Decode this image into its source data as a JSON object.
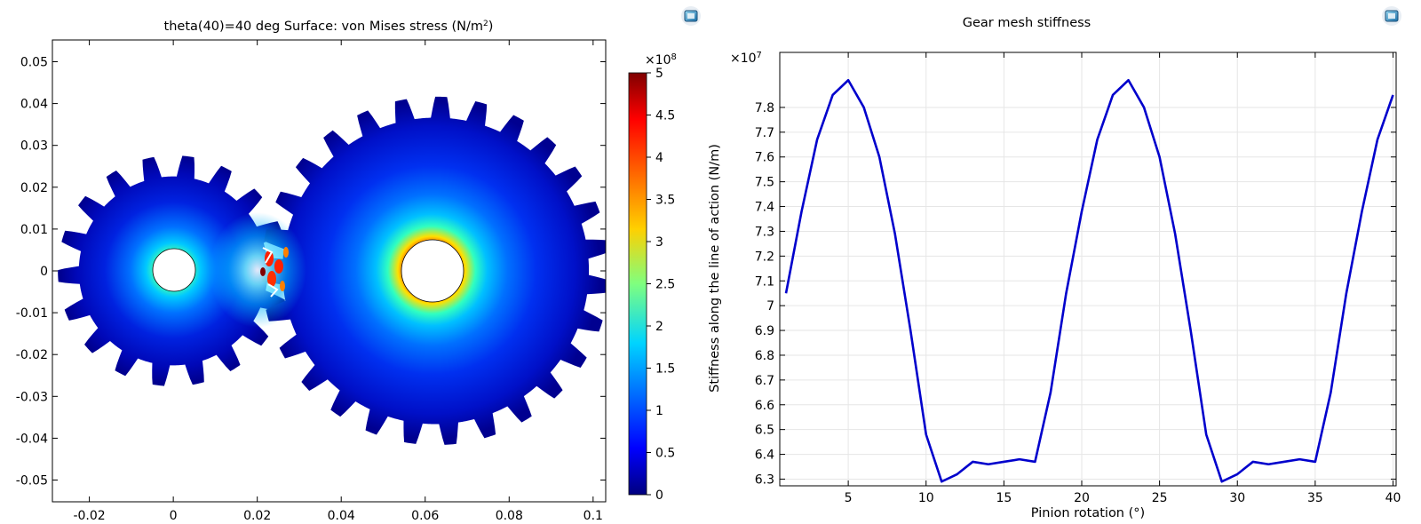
{
  "chart_data": [
    {
      "type": "heatmap",
      "title_prefix": "theta(40)=40 deg",
      "title_main": "Surface: von Mises stress (N/m",
      "title_sup": "2",
      "title_suffix": ")",
      "x_ticks": [
        -0.02,
        0,
        0.02,
        0.04,
        0.06,
        0.08,
        0.1
      ],
      "x_tick_labels": [
        "-0.02",
        "0",
        "0.02",
        "0.04",
        "0.06",
        "0.08",
        "0.1"
      ],
      "y_ticks": [
        0.05,
        0.04,
        0.03,
        0.02,
        0.01,
        0,
        -0.01,
        -0.02,
        -0.03,
        -0.04,
        -0.05
      ],
      "y_tick_labels": [
        "0.05",
        "0.04",
        "0.03",
        "0.02",
        "0.01",
        "0",
        "-0.01",
        "-0.02",
        "-0.03",
        "-0.04",
        "-0.05"
      ],
      "xlim": [
        -0.0288,
        0.103
      ],
      "ylim": [
        -0.0552,
        0.0552
      ],
      "gears": [
        {
          "name": "pinion",
          "center": [
            0,
            0
          ],
          "root_radius": 0.0225,
          "tip_radius": 0.0275,
          "teeth": 18,
          "bore_radius": 0.0052
        },
        {
          "name": "gear",
          "center": [
            0.0625,
            0
          ],
          "root_radius": 0.0365,
          "tip_radius": 0.0415,
          "teeth": 27,
          "bore_radius": 0.0075
        }
      ],
      "colorbar": {
        "exponent_base": "×10",
        "exponent_power": "8",
        "range": [
          0,
          5
        ],
        "ticks": [
          5,
          4.5,
          4,
          3.5,
          3,
          2.5,
          2,
          1.5,
          1,
          0.5,
          0
        ],
        "tick_labels": [
          "5",
          "4.5",
          "4",
          "3.5",
          "3",
          "2.5",
          "2",
          "1.5",
          "1",
          "0.5",
          "0"
        ],
        "colormap": [
          "#00007f",
          "#0000ff",
          "#00b4ff",
          "#7fff7f",
          "#ffd000",
          "#ff2a00",
          "#7f0000"
        ]
      }
    },
    {
      "type": "line",
      "title": "Gear mesh stiffness",
      "xlabel": "Pinion rotation (°)",
      "ylabel": "Stiffness along the line of action (N/m)",
      "y_multiplier_base": "×10",
      "y_multiplier_power": "7",
      "xlim": [
        0.6,
        40.2
      ],
      "ylim": [
        6.273,
        8.022
      ],
      "x_ticks": [
        5,
        10,
        15,
        20,
        25,
        30,
        35,
        40
      ],
      "y_ticks": [
        6.3,
        6.4,
        6.5,
        6.6,
        6.7,
        6.8,
        6.9,
        7,
        7.1,
        7.2,
        7.3,
        7.4,
        7.5,
        7.6,
        7.7,
        7.8
      ],
      "y_tick_labels": [
        "6.3",
        "6.4",
        "6.5",
        "6.6",
        "6.7",
        "6.8",
        "6.9",
        "7",
        "7.1",
        "7.2",
        "7.3",
        "7.4",
        "7.5",
        "7.6",
        "7.7",
        "7.8"
      ],
      "series": [
        {
          "name": "stiffness",
          "color": "#0000cc",
          "x": [
            1,
            2,
            3,
            4,
            5,
            6,
            7,
            8,
            9,
            10,
            11,
            12,
            13,
            14,
            15,
            16,
            17,
            18,
            19,
            20,
            21,
            22,
            23,
            24,
            25,
            26,
            27,
            28,
            29,
            30,
            31,
            32,
            33,
            34,
            35,
            36,
            37,
            38,
            39,
            40
          ],
          "y": [
            7.05,
            7.38,
            7.67,
            7.85,
            7.91,
            7.8,
            7.6,
            7.29,
            6.9,
            6.48,
            6.29,
            6.32,
            6.37,
            6.36,
            6.37,
            6.38,
            6.37,
            6.65,
            7.05,
            7.38,
            7.67,
            7.85,
            7.91,
            7.8,
            7.6,
            7.29,
            6.9,
            6.48,
            6.29,
            6.32,
            6.37,
            6.36,
            6.37,
            6.38,
            6.37,
            6.65,
            7.05,
            7.38,
            7.67,
            7.85
          ]
        }
      ]
    }
  ]
}
